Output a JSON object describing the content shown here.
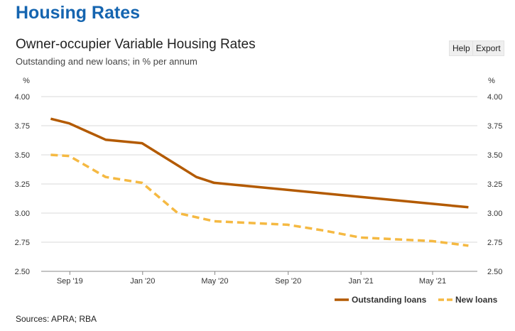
{
  "page": {
    "heading": "Housing Rates",
    "help_label": "Help",
    "export_label": "Export",
    "sources": "Sources: APRA; RBA"
  },
  "chart_data": {
    "type": "line",
    "title": "Owner-occupier Variable Housing Rates",
    "subtitle": "Outstanding and new loans; in % per annum",
    "ylabel_left": "%",
    "ylabel_right": "%",
    "ylim": [
      2.5,
      4.0
    ],
    "yticks": [
      "4.00",
      "3.75",
      "3.50",
      "3.25",
      "3.00",
      "2.75",
      "2.50"
    ],
    "xlim": [
      "2019-07-15",
      "2021-07-15"
    ],
    "xticks": [
      {
        "label": "Sep '19",
        "date": "2019-09-01"
      },
      {
        "label": "Jan '20",
        "date": "2020-01-01"
      },
      {
        "label": "May '20",
        "date": "2020-05-01"
      },
      {
        "label": "Sep '20",
        "date": "2020-09-01"
      },
      {
        "label": "Jan '21",
        "date": "2021-01-01"
      },
      {
        "label": "May '21",
        "date": "2021-05-01"
      }
    ],
    "grid": true,
    "legend_position": "bottom-right",
    "series": [
      {
        "name": "Outstanding loans",
        "color": "#b35a00",
        "style": "solid",
        "points": [
          [
            "2019-07-31",
            3.81
          ],
          [
            "2019-08-31",
            3.77
          ],
          [
            "2019-10-31",
            3.63
          ],
          [
            "2019-12-31",
            3.6
          ],
          [
            "2020-03-31",
            3.31
          ],
          [
            "2020-04-30",
            3.26
          ],
          [
            "2021-06-30",
            3.05
          ]
        ]
      },
      {
        "name": "New loans",
        "color": "#f5b942",
        "style": "dashed",
        "points": [
          [
            "2019-07-31",
            3.5
          ],
          [
            "2019-08-31",
            3.49
          ],
          [
            "2019-10-31",
            3.31
          ],
          [
            "2019-12-31",
            3.26
          ],
          [
            "2020-02-29",
            3.0
          ],
          [
            "2020-04-30",
            2.93
          ],
          [
            "2020-08-31",
            2.9
          ],
          [
            "2020-10-31",
            2.85
          ],
          [
            "2020-12-31",
            2.79
          ],
          [
            "2021-04-30",
            2.76
          ],
          [
            "2021-06-30",
            2.72
          ]
        ]
      }
    ]
  }
}
